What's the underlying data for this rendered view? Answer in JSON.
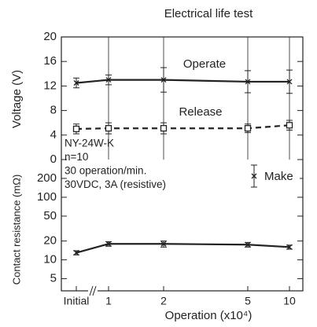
{
  "chart_data": [
    {
      "type": "line",
      "title": "Electrical life test",
      "ylabel": "Voltage (V)",
      "ylim": [
        0,
        20
      ],
      "yticks": [
        0,
        4,
        8,
        12,
        16,
        20
      ],
      "series": [
        {
          "name": "Operate",
          "color": "#222222",
          "style": "solid",
          "marker": "x",
          "values": [
            12.5,
            13,
            13,
            12.7,
            12.7
          ],
          "errors": [
            0.8,
            0.8,
            2,
            1.8,
            1.9
          ]
        },
        {
          "name": "Release",
          "color": "#222222",
          "style": "dashed",
          "marker": "square",
          "values": [
            5,
            5.1,
            5.1,
            5.1,
            5.6
          ],
          "errors": [
            0.8,
            0.9,
            0.9,
            0.7,
            0.8
          ]
        }
      ]
    },
    {
      "type": "line",
      "ylabel": "Contact resistance (mΩ)",
      "xlabel": "Operation (x10⁴)",
      "categories": [
        "Initial",
        "1",
        "2",
        "5",
        "10"
      ],
      "log_scale": true,
      "ylim": [
        3.2,
        400
      ],
      "yticks": [
        5,
        10,
        20,
        50,
        100,
        200
      ],
      "annotations": [
        "NY-24W-K",
        "n=10",
        "30 operation/min.",
        "30VDC, 3A (resistive)"
      ],
      "series": [
        {
          "name": "Make",
          "color": "#222222",
          "style": "solid",
          "marker": "x",
          "values": [
            13,
            18,
            18,
            17.5,
            16
          ],
          "errors": [
            1,
            1.5,
            2,
            1.5,
            1.2
          ]
        }
      ]
    }
  ]
}
